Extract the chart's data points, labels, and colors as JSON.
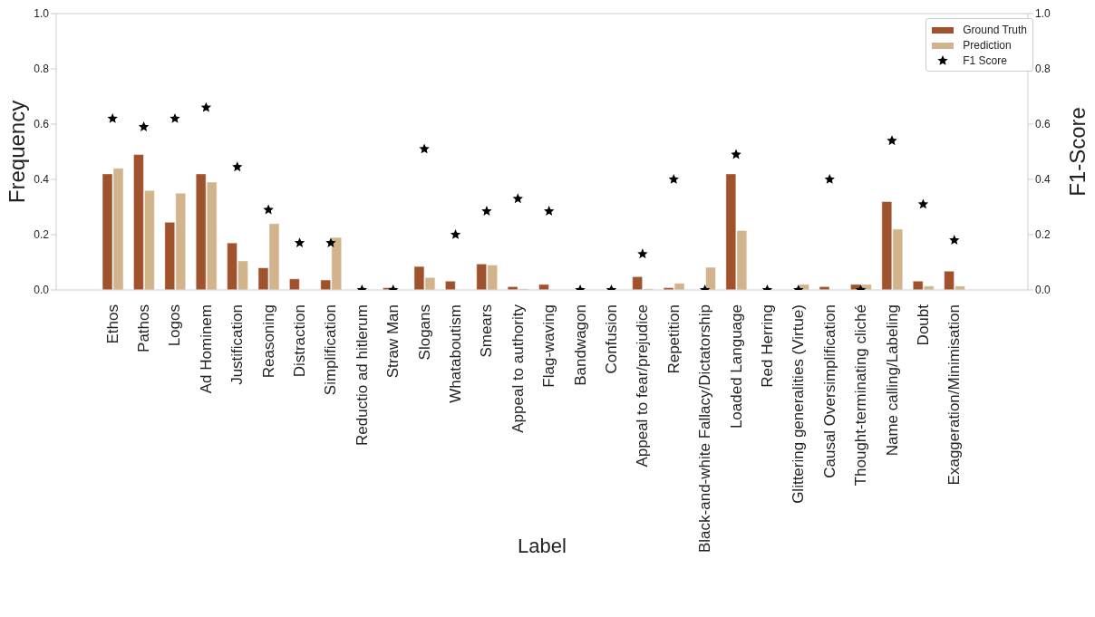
{
  "chart_data": {
    "type": "bar",
    "xlabel": "Label",
    "ylabel": "Frequency",
    "y2label": "F1-Score",
    "categories": [
      "Ethos",
      "Pathos",
      "Logos",
      "Ad Hominem",
      "Justification",
      "Reasoning",
      "Distraction",
      "Simplification",
      "Reductio ad hitlerum",
      "Straw Man",
      "Slogans",
      "Whataboutism",
      "Smears",
      "Appeal to authority",
      "Flag-waving",
      "Bandwagon",
      "Confusion",
      "Appeal to fear/prejudice",
      "Repetition",
      "Black-and-white Fallacy/Dictatorship",
      "Loaded Language",
      "Red Herring",
      "Glittering generalities (Virtue)",
      "Causal Oversimplification",
      "Thought-terminating cliché",
      "Name calling/Labeling",
      "Doubt",
      "Exaggeration/Minimisation"
    ],
    "series": [
      {
        "name": "Ground Truth",
        "color": "#a0522d",
        "values": [
          0.42,
          0.49,
          0.245,
          0.42,
          0.17,
          0.08,
          0.04,
          0.036,
          0,
          0.008,
          0.085,
          0.032,
          0.094,
          0.012,
          0.02,
          0,
          0,
          0.048,
          0.008,
          0,
          0.42,
          0,
          0,
          0.012,
          0.02,
          0.32,
          0.032,
          0.068
        ]
      },
      {
        "name": "Prediction",
        "color": "#d2b48c",
        "values": [
          0.44,
          0.36,
          0.35,
          0.39,
          0.105,
          0.24,
          0,
          0.19,
          0,
          null,
          0.045,
          0,
          0.09,
          0.004,
          0,
          0,
          0,
          0.004,
          0.024,
          0.082,
          0.215,
          0,
          0.02,
          0,
          0.02,
          0.22,
          0.014,
          0.014
        ]
      },
      {
        "name": "F1 Score",
        "type": "scatter",
        "axis": "y2",
        "color": "#000000",
        "values": [
          0.62,
          0.59,
          0.62,
          0.66,
          0.445,
          0.29,
          0.17,
          0.17,
          0,
          0,
          0.51,
          0.2,
          0.285,
          0.33,
          0.285,
          0,
          0,
          0.13,
          0.4,
          0,
          0.49,
          0,
          0,
          0.4,
          0,
          0.54,
          0.31,
          0.18
        ]
      }
    ],
    "marker": "star",
    "ylim": [
      0,
      1
    ],
    "yticks": [
      {
        "value": 0,
        "label": "0.0"
      },
      {
        "value": 0.2,
        "label": "0.2"
      },
      {
        "value": 0.4,
        "label": "0.4"
      },
      {
        "value": 0.6,
        "label": "0.6"
      },
      {
        "value": 0.8,
        "label": "0.8"
      },
      {
        "value": 1,
        "label": "1.0"
      }
    ],
    "y2lim": [
      0,
      1
    ],
    "y2ticks": [
      {
        "value": 0,
        "label": "0.0"
      },
      {
        "value": 0.2,
        "label": "0.2"
      },
      {
        "value": 0.4,
        "label": "0.4"
      },
      {
        "value": 0.6,
        "label": "0.6"
      },
      {
        "value": 0.8,
        "label": "0.8"
      },
      {
        "value": 1,
        "label": "1.0"
      }
    ],
    "legend": "top right"
  }
}
